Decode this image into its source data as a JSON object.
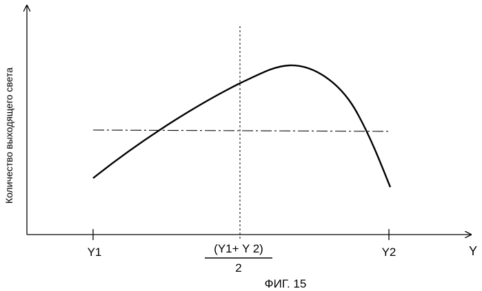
{
  "figure": {
    "caption": "ФИГ. 15",
    "y_axis_label": "Количество выходящего света",
    "x_axis_label": "Y",
    "tick_labels": {
      "y1": "Y1",
      "mid_numerator": "(Y1+ Y 2)",
      "mid_denominator": "2",
      "y2": "Y2"
    }
  },
  "colors": {
    "line": "#000000",
    "background": "#ffffff"
  }
}
